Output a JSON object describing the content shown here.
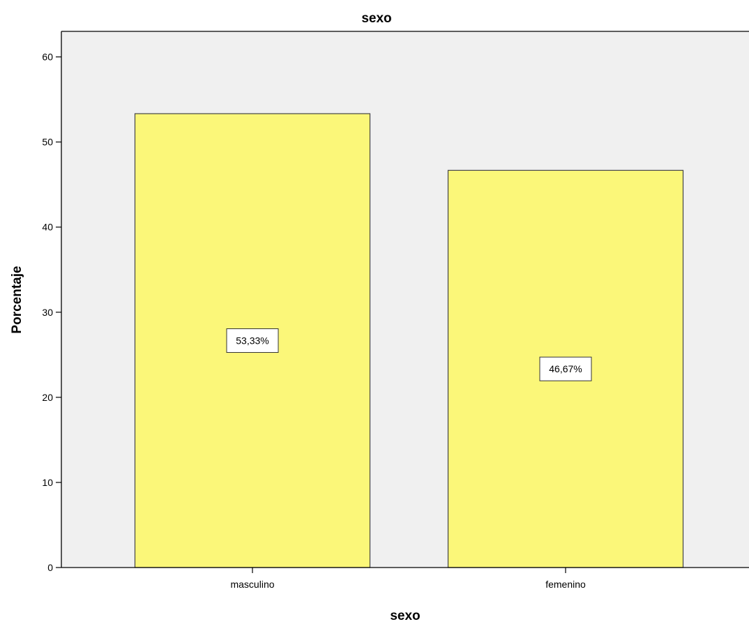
{
  "chart_data": {
    "type": "bar",
    "title": "sexo",
    "xlabel": "sexo",
    "ylabel": "Porcentaje",
    "categories": [
      "masculino",
      "femenino"
    ],
    "values": [
      53.33,
      46.67
    ],
    "data_labels": [
      "53,33%",
      "46,67%"
    ],
    "yticks": [
      "0",
      "10",
      "20",
      "30",
      "40",
      "50",
      "60"
    ],
    "ylim": [
      0,
      63
    ],
    "grid": false,
    "legend": "none",
    "colors": {
      "plot_background": "#f0f0f0",
      "bar_fill": "#fbf779",
      "bar_stroke": "#444444",
      "axis": "#000000"
    }
  }
}
